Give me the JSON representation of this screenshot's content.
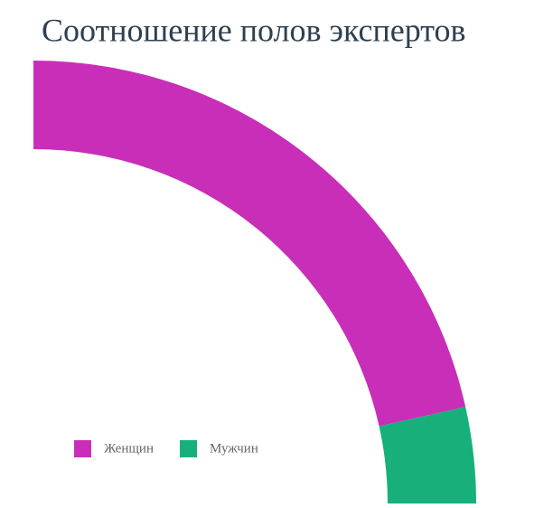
{
  "chart_data": {
    "type": "pie",
    "title": "Соотношение полов экспертов",
    "categories": [
      "Женщин",
      "Мужчин"
    ],
    "values": [
      86,
      14
    ],
    "colors": [
      "#c92eb8",
      "#17b07a"
    ],
    "legend": "bottom-left"
  }
}
